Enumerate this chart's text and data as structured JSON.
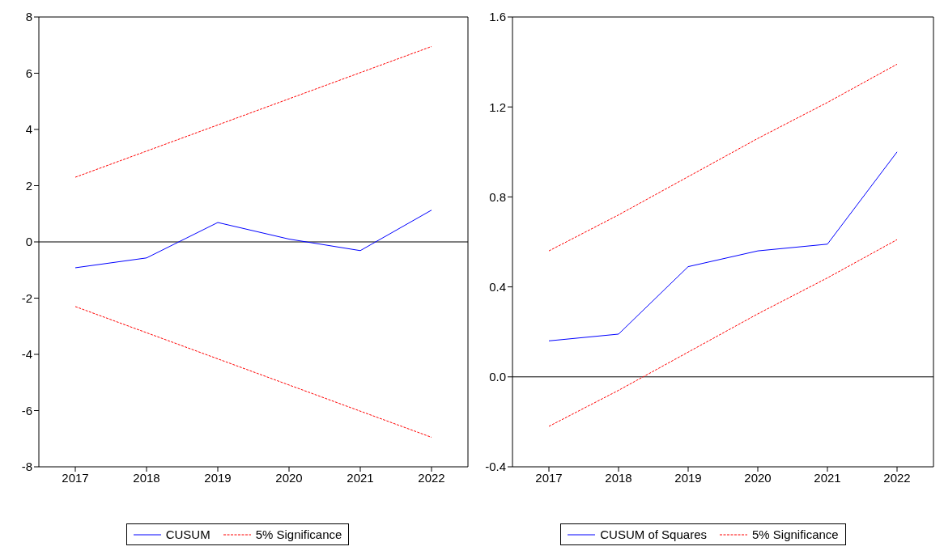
{
  "chart_data": [
    {
      "type": "line",
      "categories": [
        "2017",
        "2018",
        "2019",
        "2020",
        "2021",
        "2022"
      ],
      "series": [
        {
          "name": "CUSUM",
          "color": "#0000ff",
          "values": [
            -0.92,
            -0.57,
            0.69,
            0.1,
            -0.31,
            1.13
          ]
        },
        {
          "name": "5% Significance",
          "color": "#ff0000",
          "line_style": "dashed",
          "values": [
            2.3,
            3.23,
            4.16,
            5.09,
            6.02,
            6.95
          ]
        },
        {
          "color": "#ff0000",
          "line_style": "dashed",
          "values": [
            -2.3,
            -3.23,
            -4.16,
            -5.09,
            -6.02,
            -6.95
          ]
        }
      ],
      "ylim": [
        -8,
        8
      ],
      "yticks": [
        -8,
        -6,
        -4,
        -2,
        0,
        2,
        4,
        6,
        8
      ],
      "ref_lines": [
        {
          "axis": "y",
          "value": 0,
          "color": "#000000"
        }
      ],
      "grid": false,
      "legend": "bottom",
      "marker": "none"
    },
    {
      "type": "line",
      "categories": [
        "2017",
        "2018",
        "2019",
        "2020",
        "2021",
        "2022"
      ],
      "series": [
        {
          "name": "CUSUM of Squares",
          "color": "#0000ff",
          "values": [
            0.16,
            0.19,
            0.49,
            0.56,
            0.59,
            1.0
          ]
        },
        {
          "name": "5% Significance",
          "color": "#ff0000",
          "line_style": "dashed",
          "values": [
            0.56,
            0.72,
            0.89,
            1.06,
            1.22,
            1.39
          ]
        },
        {
          "color": "#ff0000",
          "line_style": "dashed",
          "values": [
            -0.22,
            -0.06,
            0.11,
            0.28,
            0.44,
            0.61
          ]
        }
      ],
      "ylim": [
        -0.4,
        1.6
      ],
      "yticks": [
        {
          "value": -0.4,
          "label": "-0.4"
        },
        {
          "value": 0,
          "label": "0.0"
        },
        {
          "value": 0.4,
          "label": "0.4"
        },
        {
          "value": 0.8,
          "label": "0.8"
        },
        {
          "value": 1.2,
          "label": "1.2"
        },
        {
          "value": 1.6,
          "label": "1.6"
        }
      ],
      "ref_lines": [
        {
          "axis": "y",
          "value": 0,
          "color": "#000000"
        }
      ],
      "grid": false,
      "legend": "bottom",
      "marker": "none"
    }
  ]
}
